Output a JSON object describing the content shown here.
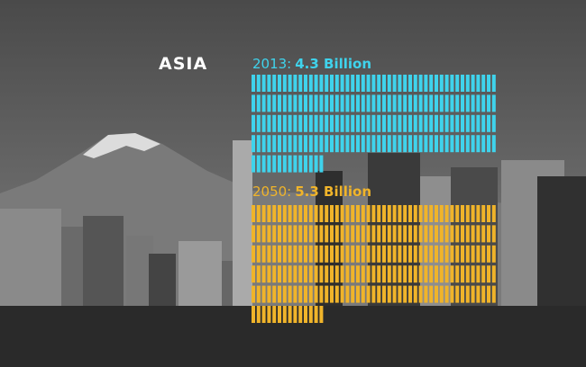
{
  "region": "ASIA",
  "colors": {
    "series_2013": "#3fd3ec",
    "series_2050": "#f0b42a",
    "background": "#5f5f5f"
  },
  "chart_data": {
    "type": "bar",
    "title": "ASIA",
    "series": [
      {
        "year_label": "2013:",
        "value_label": "4.3 Billion",
        "value": 4.3
      },
      {
        "year_label": "2050:",
        "value_label": "5.3 Billion",
        "value": 5.3
      }
    ],
    "unit": "Billion"
  }
}
